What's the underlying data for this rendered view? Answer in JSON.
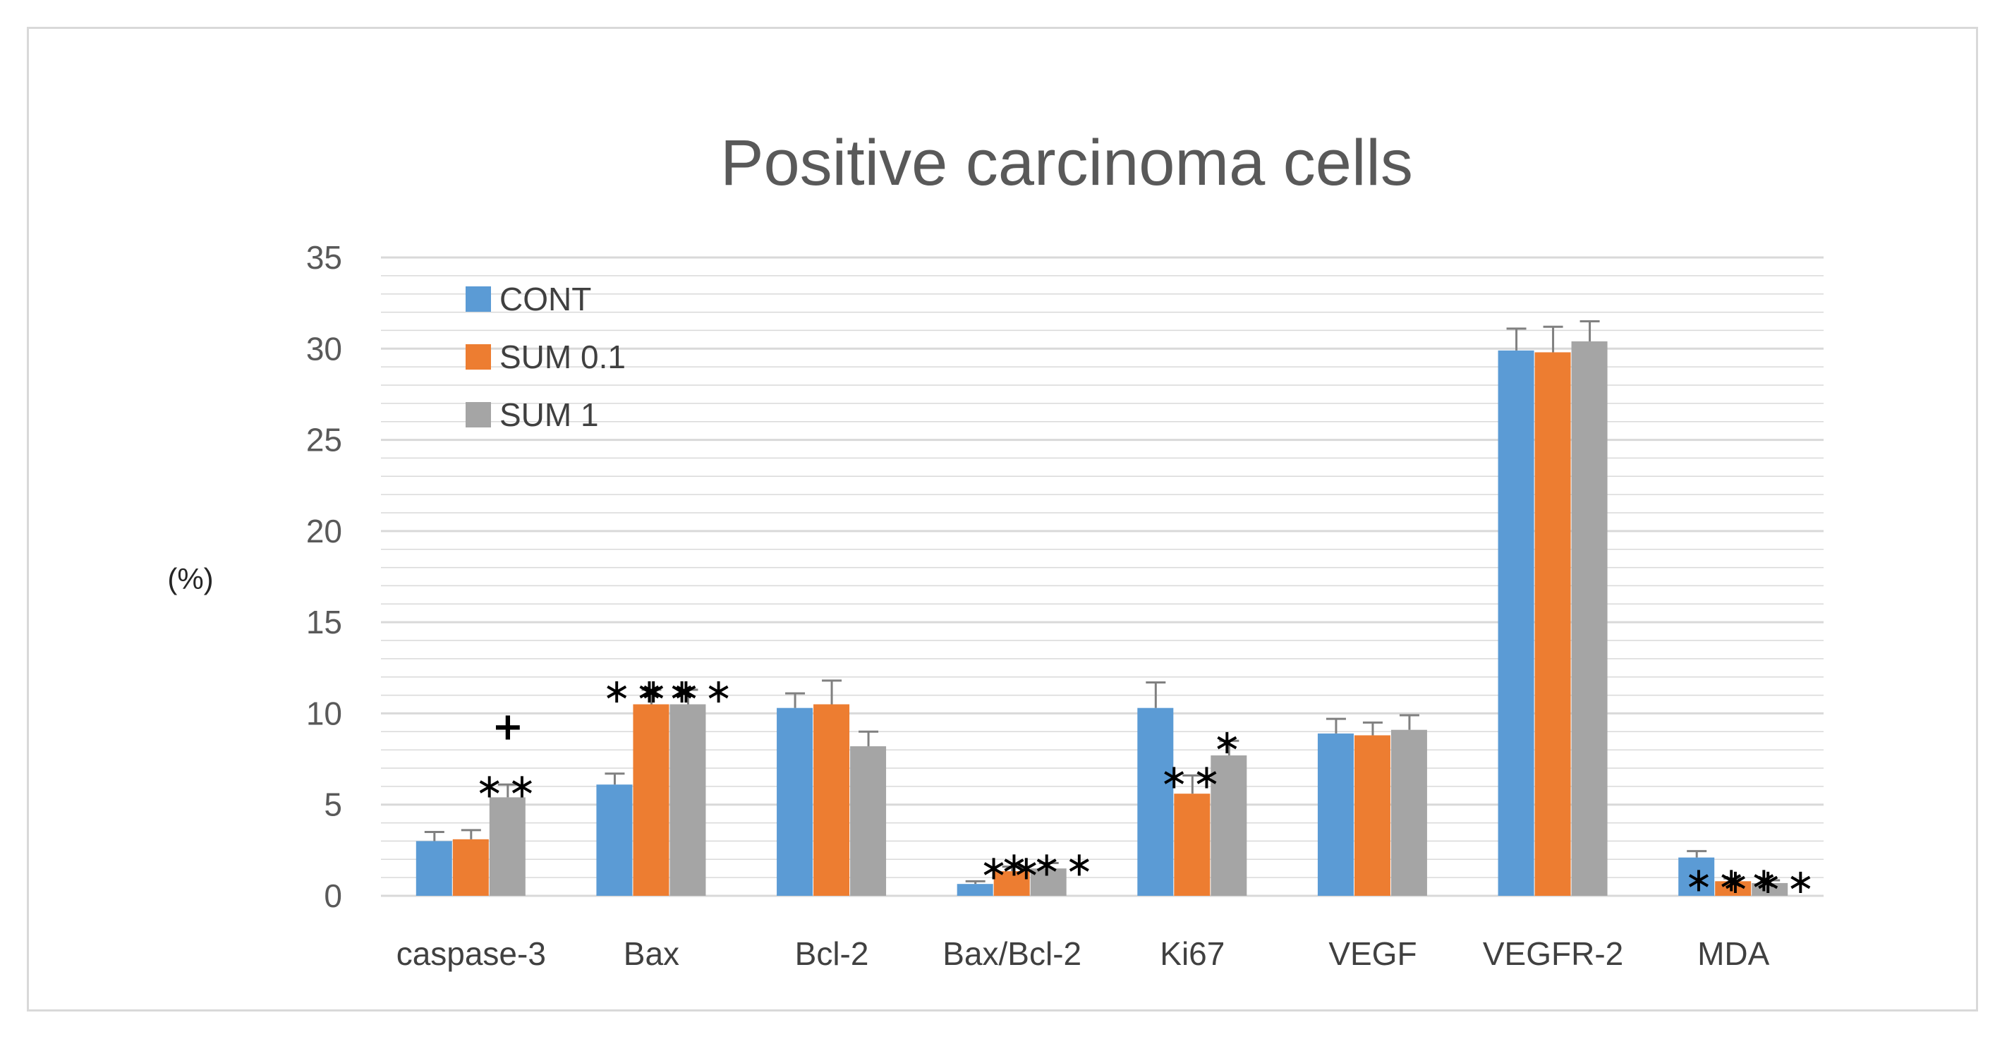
{
  "chart_data": {
    "type": "bar",
    "title": "Positive carcinoma cells",
    "xlabel": "",
    "ylabel": "(%)",
    "ylim": [
      0,
      35
    ],
    "yticks": [
      0,
      5,
      10,
      15,
      20,
      25,
      30,
      35
    ],
    "grid": true,
    "legend_position": "top-left",
    "categories": [
      "caspase-3",
      "Bax",
      "Bcl-2",
      "Bax/Bcl-2",
      "Ki67",
      "VEGF",
      "VEGFR-2",
      "MDA"
    ],
    "series": [
      {
        "name": "CONT",
        "color": "#5b9bd5",
        "values": [
          3.0,
          6.1,
          10.3,
          0.65,
          10.3,
          8.9,
          29.9,
          2.1
        ],
        "errors": [
          0.5,
          0.6,
          0.8,
          0.15,
          1.4,
          0.8,
          1.2,
          0.35
        ]
      },
      {
        "name": "SUM 0.1",
        "color": "#ed7d31",
        "values": [
          3.1,
          10.5,
          10.5,
          1.35,
          5.6,
          8.8,
          29.8,
          0.8
        ],
        "errors": [
          0.5,
          0.8,
          1.3,
          0.25,
          1.0,
          0.7,
          1.4,
          0.15
        ]
      },
      {
        "name": "SUM 1",
        "color": "#a5a5a5",
        "values": [
          5.4,
          10.5,
          8.2,
          1.5,
          7.7,
          9.1,
          30.4,
          0.7
        ],
        "errors": [
          0.7,
          0.8,
          0.8,
          0.3,
          0.8,
          0.8,
          1.1,
          0.15
        ]
      }
    ],
    "annotations": [
      {
        "category": "caspase-3",
        "series": "SUM 1",
        "lines": [
          "+",
          "**"
        ]
      },
      {
        "category": "Bax",
        "series": "SUM 0.1",
        "lines": [
          "***"
        ]
      },
      {
        "category": "Bax",
        "series": "SUM 1",
        "lines": [
          "***"
        ]
      },
      {
        "category": "Bax/Bcl-2",
        "series": "SUM 0.1",
        "lines": [
          "**"
        ]
      },
      {
        "category": "Bax/Bcl-2",
        "series": "SUM 1",
        "lines": [
          "***"
        ]
      },
      {
        "category": "Ki67",
        "series": "SUM 0.1",
        "lines": [
          "**"
        ]
      },
      {
        "category": "Ki67",
        "series": "SUM 1",
        "lines": [
          "*"
        ]
      },
      {
        "category": "MDA",
        "series": "SUM 0.1",
        "lines": [
          "***"
        ]
      },
      {
        "category": "MDA",
        "series": "SUM 1",
        "lines": [
          "***"
        ]
      }
    ],
    "colors": {
      "grid": "#d9d9d9",
      "axis": "#d9d9d9",
      "error_bar": "#808080"
    }
  }
}
